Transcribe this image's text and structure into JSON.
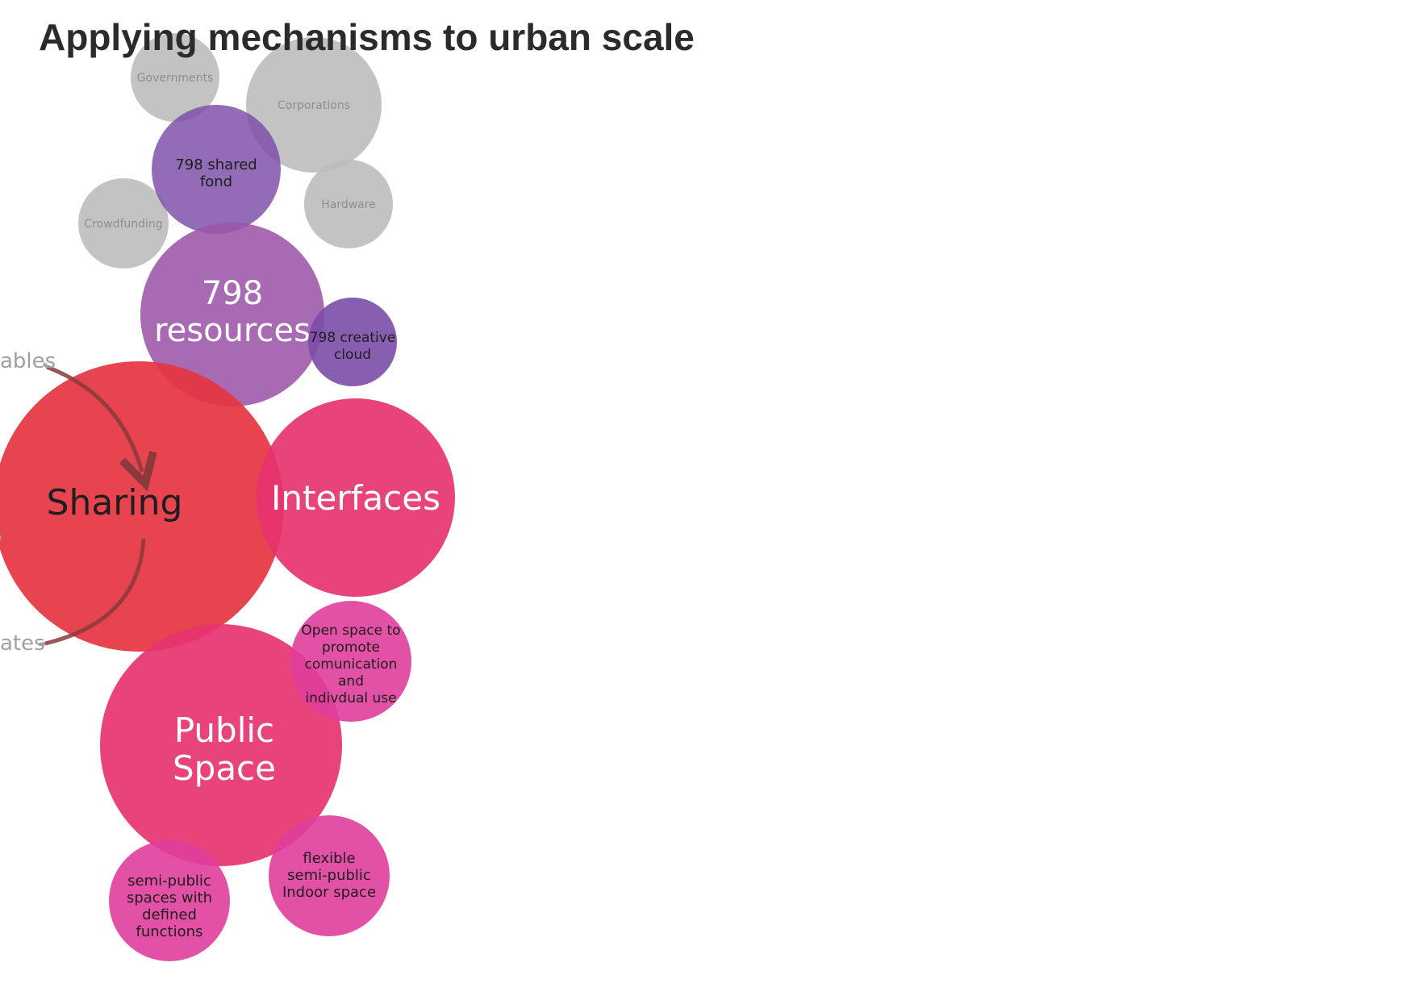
{
  "title": "Applying mechanisms to urban scale",
  "colors": {
    "grey": "#bdbdbd",
    "purple_dark": "#7b4ca8",
    "purple_mid": "#9c56a9",
    "red": "#e63441",
    "pink": "#e63370",
    "magenta": "#e03e9c",
    "arrow": "#8a3a3a",
    "edge_text": "#a0a0a0"
  },
  "bubbles": {
    "governments": "Governments",
    "corporations": "Corporations",
    "crowdfunding": "Crowdfunding",
    "hardware": "Hardware",
    "shared_fond": [
      "798 shared",
      "fond"
    ],
    "resources": [
      "798",
      "resources"
    ],
    "creative_cloud": [
      "798 creative",
      "cloud"
    ],
    "sharing": "Sharing",
    "interfaces": "Interfaces",
    "open_space": [
      "Open space to",
      "promote",
      "comunication",
      "and",
      "indivdual use"
    ],
    "public_space": [
      "Public",
      "Space"
    ],
    "flexible": [
      "flexible",
      "semi-public",
      "Indoor space"
    ],
    "semi_public": [
      "semi-public",
      "spaces with",
      "defined",
      "functions"
    ]
  },
  "edge_labels": {
    "top": "ables",
    "bottom": "ates"
  }
}
